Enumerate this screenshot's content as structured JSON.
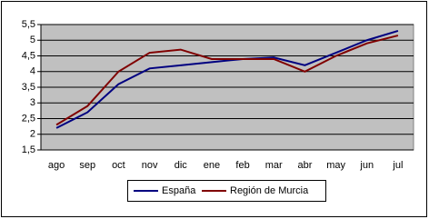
{
  "chart_data": {
    "type": "line",
    "categories": [
      "ago",
      "sep",
      "oct",
      "nov",
      "dic",
      "ene",
      "feb",
      "mar",
      "abr",
      "may",
      "jun",
      "jul"
    ],
    "series": [
      {
        "name": "España",
        "color": "#000080",
        "values": [
          2.2,
          2.7,
          3.6,
          4.1,
          4.2,
          4.3,
          4.4,
          4.45,
          4.2,
          4.6,
          5.0,
          5.3
        ]
      },
      {
        "name": "Región de Murcia",
        "color": "#800000",
        "values": [
          2.3,
          2.9,
          4.0,
          4.6,
          4.7,
          4.4,
          4.4,
          4.4,
          4.0,
          4.5,
          4.9,
          5.15
        ]
      }
    ],
    "ylim": [
      1.5,
      5.5
    ],
    "yticks": [
      {
        "value": 1.5,
        "label": "1,5"
      },
      2,
      {
        "value": 2.5,
        "label": "2,5"
      },
      3,
      {
        "value": 3.5,
        "label": "3,5"
      },
      4,
      {
        "value": 4.5,
        "label": "4,5"
      },
      5,
      {
        "value": 5.5,
        "label": "5,5"
      }
    ],
    "grid": true,
    "legend": "bottom"
  }
}
